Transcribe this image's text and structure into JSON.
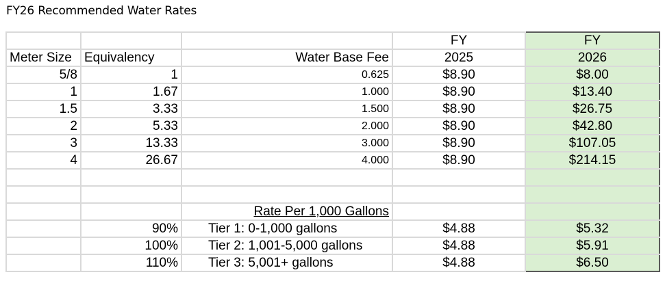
{
  "title": "FY26 Recommended Water Rates",
  "header": {
    "fy_label_1": "FY",
    "fy_label_2": "FY",
    "col_meter": "Meter Size",
    "col_equiv": "Equivalency",
    "col_base_fee": "Water Base Fee",
    "year_2025": "2025",
    "year_2026": "2026"
  },
  "meters": [
    {
      "size": "5/8",
      "equiv": "1",
      "fee": "0.625",
      "fy2025": "$8.90",
      "fy2026": "$8.00"
    },
    {
      "size": "1",
      "equiv": "1.67",
      "fee": "1.000",
      "fy2025": "$8.90",
      "fy2026": "$13.40"
    },
    {
      "size": "1.5",
      "equiv": "3.33",
      "fee": "1.500",
      "fy2025": "$8.90",
      "fy2026": "$26.75"
    },
    {
      "size": "2",
      "equiv": "5.33",
      "fee": "2.000",
      "fy2025": "$8.90",
      "fy2026": "$42.80"
    },
    {
      "size": "3",
      "equiv": "13.33",
      "fee": "3.000",
      "fy2025": "$8.90",
      "fy2026": "$107.05"
    },
    {
      "size": "4",
      "equiv": "26.67",
      "fee": "4.000",
      "fy2025": "$8.90",
      "fy2026": "$214.15"
    }
  ],
  "rate_heading": "Rate Per 1,000 Gallons",
  "tiers": [
    {
      "pct": "90%",
      "label": "Tier 1: 0-1,000 gallons",
      "fy2025": "$4.88",
      "fy2026": "$5.32"
    },
    {
      "pct": "100%",
      "label": "Tier 2: 1,001-5,000 gallons",
      "fy2025": "$4.88",
      "fy2026": "$5.91"
    },
    {
      "pct": "110%",
      "label": "Tier 3: 5,001+ gallons",
      "fy2025": "$4.88",
      "fy2026": "$6.50"
    }
  ],
  "colors": {
    "highlight": "#daefd2",
    "grid": "#d9d9d9"
  }
}
